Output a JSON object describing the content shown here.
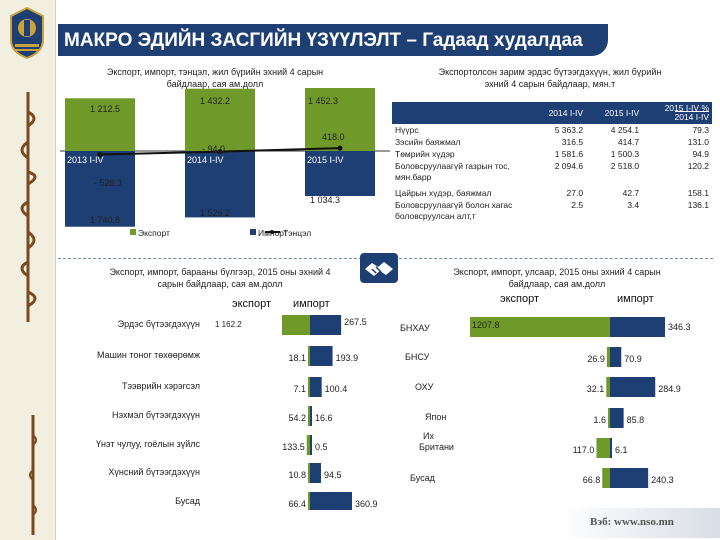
{
  "header": {
    "title": "МАКРО ЭДИЙН ЗАСГИЙН ҮЗҮҮЛЭЛТ – Гадаад худалдаа"
  },
  "footer": {
    "url": "Вэб: www.nso.mn"
  },
  "colors": {
    "title_bar": "#1d3f73",
    "export_bar": "#6f9a2a",
    "import_bar": "#1d3f73",
    "balance_line": "#111111"
  },
  "icons": {
    "emblem": "mongolia-emblem-icon",
    "handshake": "handshake-icon"
  },
  "chart_data": [
    {
      "type": "bar",
      "title": "Экспорт, импорт, тэнцэл, жил бүрийн эхний 4 сарын байдлаар, сая ам.долл",
      "categories": [
        "2013 I-IV",
        "2014 I-IV",
        "2015 I-IV"
      ],
      "series": [
        {
          "name": "Экспорт",
          "values": [
            1212.5,
            1432.2,
            1452.3
          ]
        },
        {
          "name": "Импорт",
          "values": [
            -1740.8,
            -1526.2,
            -1034.3
          ]
        },
        {
          "name": "Тэнцэл",
          "values": [
            -528.3,
            -94.0,
            418.0
          ],
          "kind": "line"
        }
      ],
      "labels": {
        "export": [
          "1 212.5",
          "1 432.2",
          "1 452.3"
        ],
        "import": [
          "1 740.8",
          "1 526.2",
          "1 034.3"
        ],
        "balance": [
          "- 528.3",
          "- 94.0",
          "418.0"
        ]
      },
      "legend": [
        "Экспорт",
        "Импорт",
        "Тэнцэл"
      ],
      "ylim": [
        -1900,
        1600
      ]
    },
    {
      "type": "table",
      "title": "Экспортолсон зарим эрдэс бүтээгдэхүүн, жил бүрийн эхний 4 сарын байдлаар, мян.т",
      "columns": [
        "2014 I-IV",
        "2015 I-IV",
        "2015 I-IV / 2014 I-IV %"
      ],
      "column_labels": {
        "c1": "2014 I-IV",
        "c2": "2015 I-IV",
        "c3a": "2015 I-IV",
        "c3b": "2014 I-IV",
        "pct": "%"
      },
      "rows": [
        {
          "name": "Нүүрс",
          "v1": "5 363.2",
          "v2": "4 254.1",
          "v3": "79.3"
        },
        {
          "name": "Зэсийн баяжмал",
          "v1": "316.5",
          "v2": "414.7",
          "v3": "131.0"
        },
        {
          "name": "Төмрийн хүдэр",
          "v1": "1 581.6",
          "v2": "1 500.3",
          "v3": "94.9"
        },
        {
          "name": "Боловсруулаагүй газрын тос, мян.барр",
          "v1": "2 094.6",
          "v2": "2 518.0",
          "v3": "120.2"
        },
        {
          "name": "Цайрын хүдэр, баяжмал",
          "v1": "27.0",
          "v2": "42.7",
          "v3": "158.1"
        },
        {
          "name": "Боловсруулаагүй болон хагас боловсруулсан алт,т",
          "v1": "2.5",
          "v2": "3.4",
          "v3": "136.1"
        }
      ]
    },
    {
      "type": "bar",
      "title": "Экспорт, импорт, барааны бүлгээр, 2015 оны эхний 4 сарын байдлаар, сая ам.долл",
      "series_labels": {
        "export": "экспорт",
        "import": "импорт"
      },
      "categories": [
        "Эрдэс бүтээгдэхүүн",
        "Машин тоног төхөөрөмж",
        "Тээврийн хэрэгсэл",
        "Нэхмэл бүтээгдэхүүн",
        "Үнэт чулуу, гоёлын зүйлс",
        "Хүнсний бүтээгдэхүүн",
        "Бусад"
      ],
      "series": [
        {
          "name": "экспорт",
          "values": [
            1162.2,
            18.1,
            7.1,
            54.2,
            133.5,
            10.8,
            66.4
          ]
        },
        {
          "name": "импорт",
          "values": [
            267.5,
            193.9,
            100.4,
            16.6,
            0.5,
            94.5,
            360.9
          ]
        }
      ],
      "labels": {
        "export": [
          "1 162.2",
          "18.1",
          "7.1",
          "54.2",
          "133.5",
          "10.8",
          "66.4"
        ],
        "import": [
          "267.5",
          "193.9",
          "100.4",
          "16.6",
          "0.5",
          "94.5",
          "360.9"
        ]
      }
    },
    {
      "type": "bar",
      "title": "Экспорт, импорт, улсаар, 2015 оны эхний 4 сарын байдлаар, сая ам.долл",
      "series_labels": {
        "export": "экспорт",
        "import": "импорт"
      },
      "categories": [
        "БНХАУ",
        "БНСУ",
        "ОХУ",
        "Япон",
        "Их Британи",
        "Бусад"
      ],
      "series": [
        {
          "name": "экспорт",
          "values": [
            1207.8,
            26.9,
            32.1,
            1.6,
            117.0,
            66.8
          ]
        },
        {
          "name": "импорт",
          "values": [
            346.3,
            70.9,
            284.9,
            85.8,
            6.1,
            240.3
          ]
        }
      ],
      "labels": {
        "export": [
          "1207.8",
          "26.9",
          "32.1",
          "1.6",
          "117.0",
          "66.8"
        ],
        "import": [
          "346.3",
          "70.9",
          "284.9",
          "85.8",
          "6.1",
          "240.3"
        ]
      }
    }
  ]
}
